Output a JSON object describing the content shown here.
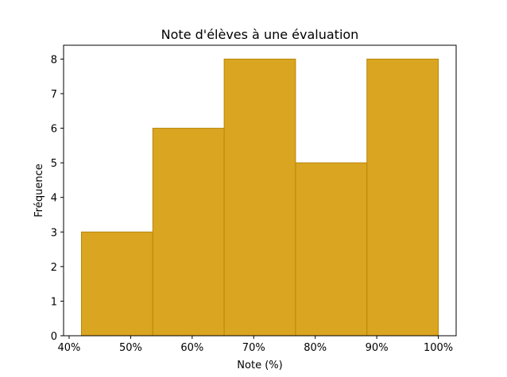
{
  "chart_data": {
    "type": "bar",
    "title": "Note d'élèves à une évaluation",
    "xlabel": "Note (%)",
    "ylabel": "Fréquence",
    "bins": [
      {
        "start": 42,
        "end": 53.6,
        "count": 3
      },
      {
        "start": 53.6,
        "end": 65.2,
        "count": 6
      },
      {
        "start": 65.2,
        "end": 76.8,
        "count": 8
      },
      {
        "start": 76.8,
        "end": 88.4,
        "count": 5
      },
      {
        "start": 88.4,
        "end": 100,
        "count": 8
      }
    ],
    "xlim": [
      39.1,
      102.9
    ],
    "ylim": [
      0,
      8.4
    ],
    "xticks": [
      40,
      50,
      60,
      70,
      80,
      90,
      100
    ],
    "xtick_labels": [
      "40%",
      "50%",
      "60%",
      "70%",
      "80%",
      "90%",
      "100%"
    ],
    "yticks": [
      0,
      1,
      2,
      3,
      4,
      5,
      6,
      7,
      8
    ],
    "ytick_labels": [
      "0",
      "1",
      "2",
      "3",
      "4",
      "5",
      "6",
      "7",
      "8"
    ],
    "bar_color": "#DAA520",
    "edge_color": "#B8860B",
    "grid": false,
    "legend": "none"
  }
}
